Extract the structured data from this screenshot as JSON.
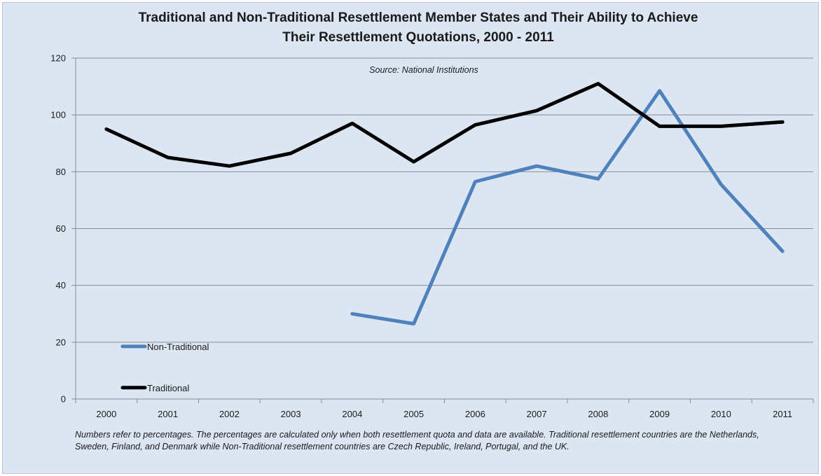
{
  "chart_data": {
    "type": "line",
    "title": "Traditional and Non-Traditional Resettlement Member States and Their Ability to Achieve Their Resettlement Quotations, 2000 - 2011",
    "title_lines": [
      "Traditional and Non-Traditional Resettlement Member States and Their Ability to Achieve",
      "Their Resettlement Quotations, 2000 - 2011"
    ],
    "annotation": "Source: National Institutions",
    "footnote": "Numbers refer to percentages. The percentages are calculated only when both resettlement quota and data are available. Traditional resettlement countries are the Netherlands, Sweden, Finland, and Denmark while Non-Traditional resettlement countries are Czech Republic, Ireland, Portugal, and the UK.",
    "categories": [
      "2000",
      "2001",
      "2002",
      "2003",
      "2004",
      "2005",
      "2006",
      "2007",
      "2008",
      "2009",
      "2010",
      "2011"
    ],
    "xlabel": "",
    "ylabel": "",
    "ylim": [
      0,
      120
    ],
    "yticks": [
      0,
      20,
      40,
      60,
      80,
      100,
      120
    ],
    "grid": true,
    "legend_position": "bottom-left",
    "series": [
      {
        "name": "Non-Traditional",
        "color": "#4f81bd",
        "values": [
          null,
          null,
          null,
          null,
          30,
          26.5,
          76.5,
          82,
          77.5,
          108.5,
          75.5,
          52
        ]
      },
      {
        "name": "Traditional",
        "color": "#000000",
        "values": [
          95,
          85,
          82,
          86.5,
          97,
          83.5,
          96.5,
          101.5,
          111,
          96,
          96,
          97.5
        ]
      }
    ]
  }
}
